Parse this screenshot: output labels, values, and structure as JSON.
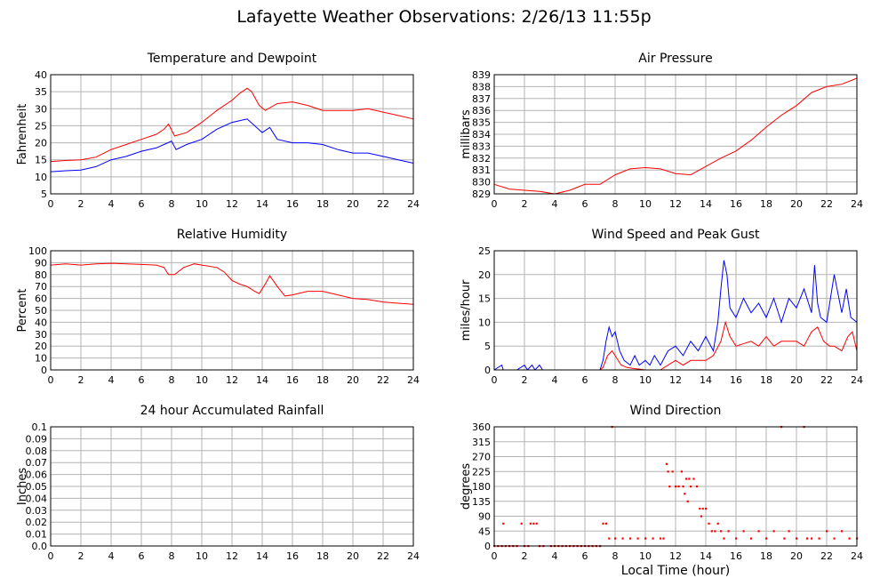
{
  "title": "Lafayette Weather Observations: 2/26/13 11:55p",
  "xlabel": "Local Time (hour)",
  "colors": {
    "red": "#ff0000",
    "blue": "#0000ff",
    "grid": "#b3b3b3",
    "frame": "#000000"
  },
  "chart_data": [
    {
      "id": "temp",
      "type": "line",
      "title": "Temperature and Dewpoint",
      "ylabel": "Fahrenheit",
      "xlim": [
        0,
        24
      ],
      "ylim": [
        5,
        40
      ],
      "yticks": [
        5,
        10,
        15,
        20,
        25,
        30,
        35,
        40
      ],
      "xticks": [
        0,
        2,
        4,
        6,
        8,
        10,
        12,
        14,
        16,
        18,
        20,
        22,
        24
      ],
      "series": [
        {
          "color": "#ff0000",
          "x": [
            0,
            1,
            2,
            3,
            4,
            5,
            6,
            7,
            7.5,
            7.8,
            8.2,
            9,
            10,
            11,
            12,
            12.5,
            13,
            13.3,
            13.8,
            14.2,
            15,
            16,
            17,
            18,
            19,
            20,
            21,
            22,
            23,
            24
          ],
          "y": [
            14.5,
            14.8,
            15,
            15.8,
            18,
            19.5,
            21,
            22.5,
            24,
            25.5,
            22,
            23,
            26,
            29.5,
            32.5,
            34.5,
            36,
            35,
            31,
            29.5,
            31.5,
            32,
            31,
            29.5,
            29.5,
            29.5,
            30,
            29,
            28,
            27
          ]
        },
        {
          "color": "#0000ff",
          "x": [
            0,
            1,
            2,
            3,
            4,
            5,
            6,
            7,
            7.5,
            8,
            8.3,
            9,
            10,
            11,
            12,
            12.5,
            13,
            13.5,
            14,
            14.5,
            15,
            16,
            17,
            18,
            19,
            20,
            21,
            22,
            23,
            24
          ],
          "y": [
            11.5,
            11.8,
            12,
            13,
            15,
            16,
            17.5,
            18.5,
            19.5,
            20.5,
            18,
            19.5,
            21,
            24,
            26,
            26.5,
            27,
            25,
            23,
            24.5,
            21,
            20,
            20,
            19.5,
            18,
            17,
            17,
            16,
            15,
            14
          ]
        }
      ]
    },
    {
      "id": "pressure",
      "type": "line",
      "title": "Air Pressure",
      "ylabel": "millibars",
      "xlim": [
        0,
        24
      ],
      "ylim": [
        829,
        839
      ],
      "yticks": [
        829,
        830,
        831,
        832,
        833,
        834,
        835,
        836,
        837,
        838,
        839
      ],
      "ytick_labels": [
        "829",
        "830",
        "831",
        "832",
        "833",
        "834",
        "835",
        "836",
        "837",
        "838",
        "839"
      ],
      "xticks": [
        0,
        2,
        4,
        6,
        8,
        10,
        12,
        14,
        16,
        18,
        20,
        22,
        24
      ],
      "series": [
        {
          "color": "#ff0000",
          "x": [
            0,
            1,
            2,
            3,
            4,
            5,
            6,
            7,
            8,
            9,
            10,
            11,
            12,
            13,
            14,
            15,
            16,
            17,
            18,
            19,
            20,
            21,
            22,
            23,
            24
          ],
          "y": [
            829.8,
            829.4,
            829.3,
            829.2,
            829.0,
            829.3,
            829.8,
            829.8,
            830.6,
            831.1,
            831.2,
            831.1,
            830.7,
            830.6,
            831.3,
            832.0,
            832.6,
            833.5,
            834.6,
            835.6,
            836.4,
            837.5,
            838.0,
            838.2,
            838.7
          ]
        }
      ]
    },
    {
      "id": "humidity",
      "type": "line",
      "title": "Relative Humidity",
      "ylabel": "Percent",
      "xlim": [
        0,
        24
      ],
      "ylim": [
        0,
        100
      ],
      "yticks": [
        0,
        10,
        20,
        30,
        40,
        50,
        60,
        70,
        80,
        90,
        100
      ],
      "xticks": [
        0,
        2,
        4,
        6,
        8,
        10,
        12,
        14,
        16,
        18,
        20,
        22,
        24
      ],
      "series": [
        {
          "color": "#ff0000",
          "x": [
            0,
            1,
            2,
            3,
            4,
            5,
            6,
            7,
            7.5,
            7.8,
            8.2,
            8.8,
            9.5,
            10,
            11,
            11.5,
            12,
            12.5,
            13,
            13.5,
            13.8,
            14.2,
            14.5,
            15,
            15.5,
            16,
            17,
            18,
            19,
            20,
            21,
            22,
            23,
            24
          ],
          "y": [
            88,
            89,
            88,
            89,
            89.5,
            89,
            88.5,
            88,
            86,
            80,
            80,
            86,
            89,
            88,
            86,
            82,
            75,
            72,
            70,
            66,
            64,
            72,
            79,
            70,
            62,
            63,
            66,
            66,
            63,
            60,
            59,
            57,
            56,
            55
          ]
        }
      ]
    },
    {
      "id": "wind",
      "type": "line",
      "title": "Wind Speed and Peak Gust",
      "ylabel": "miles/hour",
      "xlim": [
        0,
        24
      ],
      "ylim": [
        0,
        25
      ],
      "yticks": [
        0,
        5,
        10,
        15,
        20,
        25
      ],
      "xticks": [
        0,
        2,
        4,
        6,
        8,
        10,
        12,
        14,
        16,
        18,
        20,
        22,
        24
      ],
      "series": [
        {
          "color": "#0000ff",
          "x": [
            0,
            0.5,
            0.6,
            0.7,
            1.5,
            2,
            2.2,
            2.5,
            2.7,
            3,
            3.2,
            3.5,
            4,
            5,
            6,
            7,
            7.2,
            7.4,
            7.6,
            7.8,
            8,
            8.3,
            8.6,
            9,
            9.3,
            9.6,
            10,
            10.3,
            10.6,
            11,
            11.5,
            12,
            12.5,
            13,
            13.5,
            14,
            14.5,
            14.8,
            15,
            15.2,
            15.4,
            15.6,
            16,
            16.5,
            17,
            17.5,
            18,
            18.5,
            19,
            19.5,
            20,
            20.5,
            21,
            21.2,
            21.4,
            21.6,
            22,
            22.5,
            23,
            23.3,
            23.6,
            24
          ],
          "y": [
            0,
            1,
            0,
            0,
            0,
            1,
            0,
            1,
            0,
            1,
            0,
            0,
            0,
            0,
            0,
            0,
            2,
            6,
            9,
            7,
            8,
            4,
            2,
            1,
            3,
            1,
            2,
            1,
            3,
            1,
            4,
            5,
            3,
            6,
            4,
            7,
            4,
            10,
            17,
            23,
            20,
            13,
            11,
            15,
            12,
            14,
            11,
            15,
            10,
            15,
            13,
            17,
            12,
            22,
            14,
            11,
            10,
            20,
            12,
            17,
            11,
            10
          ]
        },
        {
          "color": "#ff0000",
          "x": [
            0,
            7,
            7.2,
            7.5,
            7.8,
            8,
            8.4,
            8.8,
            9.2,
            10,
            11,
            11.5,
            12,
            12.5,
            13,
            13.5,
            14,
            14.5,
            15,
            15.3,
            15.6,
            16,
            17,
            17.5,
            18,
            18.5,
            19,
            20,
            20.5,
            21,
            21.4,
            21.8,
            22.2,
            22.5,
            23,
            23.4,
            23.7,
            24
          ],
          "y": [
            0,
            0,
            0.5,
            3,
            4,
            3,
            1,
            0.5,
            0.3,
            0,
            0,
            1,
            2,
            1,
            2,
            2,
            2,
            3,
            6,
            10,
            7,
            5,
            6,
            5,
            7,
            5,
            6,
            6,
            5,
            8,
            9,
            6,
            5,
            5,
            4,
            7,
            8,
            4
          ]
        }
      ]
    },
    {
      "id": "rain",
      "type": "line",
      "title": "24 hour Accumulated Rainfall",
      "ylabel": "Inches",
      "xlim": [
        0,
        24
      ],
      "ylim": [
        0,
        0.1
      ],
      "yticks": [
        0,
        0.01,
        0.02,
        0.03,
        0.04,
        0.05,
        0.06,
        0.07,
        0.08,
        0.09,
        0.1
      ],
      "ytick_labels": [
        "0.0",
        "0.01",
        "0.02",
        "0.03",
        "0.04",
        "0.05",
        "0.06",
        "0.07",
        "0.08",
        "0.09",
        "0.1"
      ],
      "xticks": [
        0,
        2,
        4,
        6,
        8,
        10,
        12,
        14,
        16,
        18,
        20,
        22,
        24
      ],
      "series": [
        {
          "color": "#ff0000",
          "x": [
            0,
            24
          ],
          "y": [
            0,
            0
          ]
        }
      ]
    },
    {
      "id": "direction",
      "type": "scatter",
      "title": "Wind Direction",
      "ylabel": "degrees",
      "xlim": [
        0,
        24
      ],
      "ylim": [
        0,
        360
      ],
      "yticks": [
        0,
        45,
        90,
        135,
        180,
        225,
        270,
        315,
        360
      ],
      "xticks": [
        0,
        2,
        4,
        6,
        8,
        10,
        12,
        14,
        16,
        18,
        20,
        22,
        24
      ],
      "series": [
        {
          "color": "#ff0000",
          "points": [
            [
              0,
              0
            ],
            [
              0.25,
              0
            ],
            [
              0.5,
              0
            ],
            [
              0.6,
              68
            ],
            [
              0.75,
              0
            ],
            [
              1,
              0
            ],
            [
              1.25,
              0
            ],
            [
              1.5,
              0
            ],
            [
              1.8,
              68
            ],
            [
              2,
              0
            ],
            [
              2.25,
              0
            ],
            [
              2.4,
              68
            ],
            [
              2.6,
              68
            ],
            [
              2.8,
              68
            ],
            [
              3,
              0
            ],
            [
              3.25,
              0
            ],
            [
              3.75,
              0
            ],
            [
              4,
              0
            ],
            [
              4.25,
              0
            ],
            [
              4.5,
              0
            ],
            [
              4.75,
              0
            ],
            [
              5,
              0
            ],
            [
              5.25,
              0
            ],
            [
              5.5,
              0
            ],
            [
              5.75,
              0
            ],
            [
              6,
              0
            ],
            [
              6.25,
              0
            ],
            [
              6.5,
              0
            ],
            [
              6.75,
              0
            ],
            [
              7,
              0
            ],
            [
              7.2,
              68
            ],
            [
              7.4,
              68
            ],
            [
              7.6,
              23
            ],
            [
              7.8,
              360
            ],
            [
              8,
              23
            ],
            [
              8.5,
              23
            ],
            [
              9,
              23
            ],
            [
              9.5,
              23
            ],
            [
              10,
              23
            ],
            [
              10.5,
              23
            ],
            [
              11,
              23
            ],
            [
              11.2,
              23
            ],
            [
              11.4,
              248
            ],
            [
              11.5,
              225
            ],
            [
              11.6,
              180
            ],
            [
              11.8,
              225
            ],
            [
              12,
              180
            ],
            [
              12.2,
              180
            ],
            [
              12.4,
              225
            ],
            [
              12.5,
              180
            ],
            [
              12.6,
              158
            ],
            [
              12.7,
              203
            ],
            [
              12.8,
              135
            ],
            [
              12.9,
              203
            ],
            [
              13,
              180
            ],
            [
              13.2,
              203
            ],
            [
              13.4,
              180
            ],
            [
              13.6,
              113
            ],
            [
              13.7,
              90
            ],
            [
              13.8,
              113
            ],
            [
              14,
              113
            ],
            [
              14.2,
              68
            ],
            [
              14.4,
              45
            ],
            [
              14.6,
              45
            ],
            [
              14.8,
              68
            ],
            [
              15,
              45
            ],
            [
              15.2,
              23
            ],
            [
              15.5,
              45
            ],
            [
              16,
              23
            ],
            [
              16.5,
              45
            ],
            [
              17,
              23
            ],
            [
              17.5,
              45
            ],
            [
              18,
              23
            ],
            [
              18.5,
              45
            ],
            [
              19,
              360
            ],
            [
              19.2,
              23
            ],
            [
              19.5,
              45
            ],
            [
              20,
              23
            ],
            [
              20.5,
              360
            ],
            [
              20.7,
              23
            ],
            [
              21,
              23
            ],
            [
              21.5,
              23
            ],
            [
              22,
              45
            ],
            [
              22.5,
              23
            ],
            [
              23,
              45
            ],
            [
              23.5,
              23
            ],
            [
              24,
              23
            ]
          ]
        }
      ]
    }
  ]
}
